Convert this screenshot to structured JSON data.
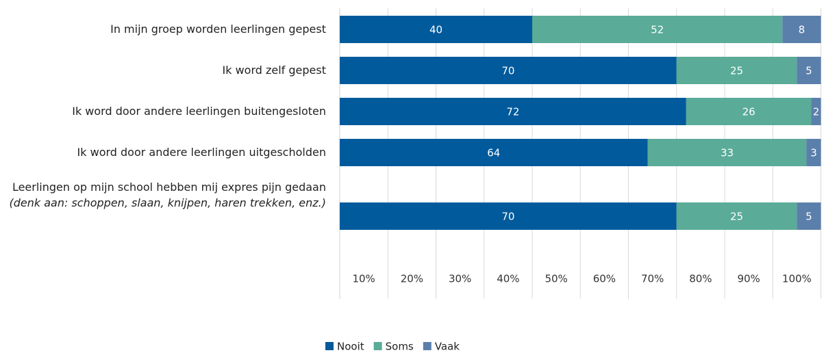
{
  "chart_data": {
    "type": "stacked_bar_horizontal",
    "categories": [
      "In mijn groep worden leerlingen gepest",
      "Ik word zelf gepest",
      "Ik word door andere leerlingen buitengesloten",
      "Ik word door andere leerlingen uitgescholden",
      "Leerlingen op mijn school hebben mij expres pijn gedaan"
    ],
    "category_note": "(denk aan: schoppen, slaan, knijpen, haren trekken, enz.)",
    "series": [
      {
        "name": "Nooit",
        "color": "#005a9c",
        "values": [
          40,
          70,
          72,
          64,
          70
        ]
      },
      {
        "name": "Soms",
        "color": "#5aab97",
        "values": [
          52,
          25,
          26,
          33,
          25
        ]
      },
      {
        "name": "Vaak",
        "color": "#5b7fab",
        "values": [
          8,
          5,
          2,
          3,
          5
        ]
      }
    ],
    "xlim": [
      0,
      100
    ],
    "xticks": [
      {
        "value": 10,
        "label": "10%"
      },
      {
        "value": 20,
        "label": "20%"
      },
      {
        "value": 30,
        "label": "30%"
      },
      {
        "value": 40,
        "label": "40%"
      },
      {
        "value": 50,
        "label": "50%"
      },
      {
        "value": 60,
        "label": "60%"
      },
      {
        "value": 70,
        "label": "70%"
      },
      {
        "value": 80,
        "label": "80%"
      },
      {
        "value": 90,
        "label": "90%"
      },
      {
        "value": 100,
        "label": "100%"
      }
    ],
    "grid": true,
    "legend": "bottom"
  }
}
